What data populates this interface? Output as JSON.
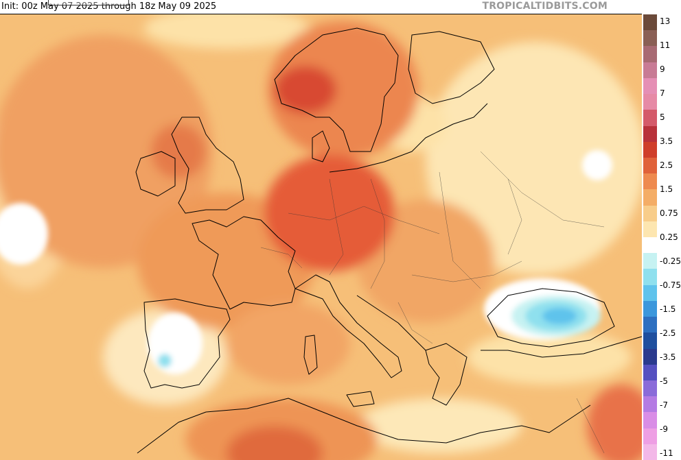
{
  "header": {
    "init_text": "Init: 00z May 07 2025 through 18z May 09 2025",
    "brand": "TROPICALTIDBITS.COM"
  },
  "colorbar": {
    "labels": [
      "13",
      "11",
      "9",
      "7",
      "5",
      "3.5",
      "2.5",
      "1.5",
      "0.75",
      "0.25",
      "-0.25",
      "-0.75",
      "-1.5",
      "-2.5",
      "-3.5",
      "-5",
      "-7",
      "-9",
      "-11"
    ],
    "colors": [
      "#6b4a3a",
      "#8a5f55",
      "#a86a73",
      "#c87b95",
      "#e58fb5",
      "#e68aa6",
      "#d45a6a",
      "#b8313a",
      "#cf3e2a",
      "#e0623a",
      "#ee8a4f",
      "#f4ad66",
      "#f8cd8a",
      "#fde6b0",
      "#ffffff",
      "#c6f2f2",
      "#8fe0ee",
      "#5fc3ec",
      "#3b97dc",
      "#2d6fc0",
      "#1f4f9e",
      "#2a3a8e",
      "#5550c0",
      "#8a6bd9",
      "#b47be3",
      "#d98de6",
      "#ee9fe4",
      "#f3b8e8"
    ]
  },
  "map": {
    "icons": [
      "coastline-lines",
      "country-borders"
    ]
  }
}
